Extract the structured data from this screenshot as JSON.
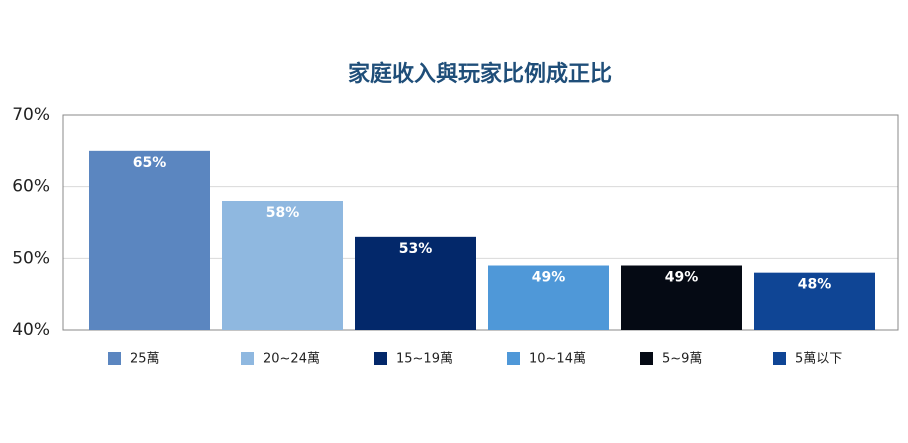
{
  "chart_data": {
    "type": "bar",
    "title": "家庭收入與玩家比例成正比",
    "categories": [
      "25萬",
      "20~24萬",
      "15~19萬",
      "10~14萬",
      "5~9萬",
      "5萬以下"
    ],
    "values": [
      65,
      58,
      53,
      49,
      49,
      48
    ],
    "value_labels": [
      "65%",
      "58%",
      "53%",
      "49%",
      "49%",
      "48%"
    ],
    "colors": [
      "#5b86c0",
      "#8fb8e0",
      "#03286a",
      "#4f98d8",
      "#050a14",
      "#0f4595"
    ],
    "ylim": [
      40,
      70
    ],
    "yticks": [
      {
        "value": 40,
        "label": "40%"
      },
      {
        "value": 50,
        "label": "50%"
      },
      {
        "value": 60,
        "label": "60%"
      },
      {
        "value": 70,
        "label": "70%"
      }
    ],
    "grid": true,
    "legend": "bottom"
  }
}
